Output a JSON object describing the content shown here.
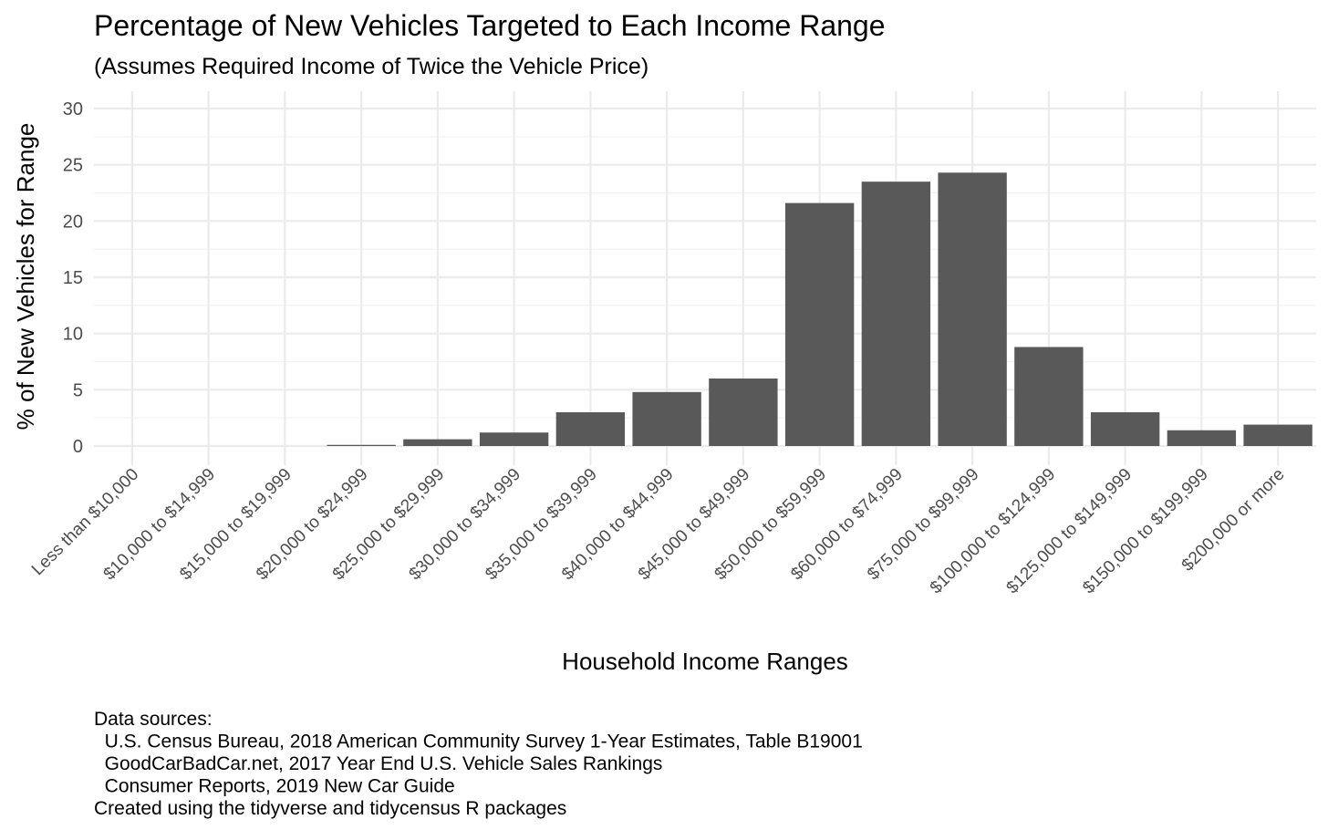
{
  "chart_data": {
    "type": "bar",
    "title": "Percentage of New Vehicles Targeted to Each Income Range",
    "subtitle": "(Assumes Required Income of Twice the Vehicle Price)",
    "xlabel": "Household Income Ranges",
    "ylabel": "% of New Vehicles for Range",
    "ylim": [
      0,
      30
    ],
    "yticks": [
      "0",
      "5",
      "10",
      "15",
      "20",
      "25",
      "30"
    ],
    "grid": true,
    "legend": "none",
    "bar_color": "#595959",
    "categories": [
      "Less than $10,000",
      "$10,000 to $14,999",
      "$15,000 to $19,999",
      "$20,000 to $24,999",
      "$25,000 to $29,999",
      "$30,000 to $34,999",
      "$35,000 to $39,999",
      "$40,000 to $44,999",
      "$45,000 to $49,999",
      "$50,000 to $59,999",
      "$60,000 to $74,999",
      "$75,000 to $99,999",
      "$100,000 to $124,999",
      "$125,000 to $149,999",
      "$150,000 to $199,999",
      "$200,000 or more"
    ],
    "values": [
      0,
      0,
      0,
      0.1,
      0.6,
      1.2,
      3.0,
      4.8,
      6.0,
      21.6,
      23.5,
      24.3,
      8.8,
      3.0,
      1.4,
      1.9
    ],
    "caption": [
      "Data sources:",
      "  U.S. Census Bureau, 2018 American Community Survey 1-Year Estimates, Table B19001",
      "  GoodCarBadCar.net, 2017 Year End U.S. Vehicle Sales Rankings",
      "  Consumer Reports, 2019 New Car Guide",
      "Created using the tidyverse and tidycensus R packages"
    ]
  }
}
